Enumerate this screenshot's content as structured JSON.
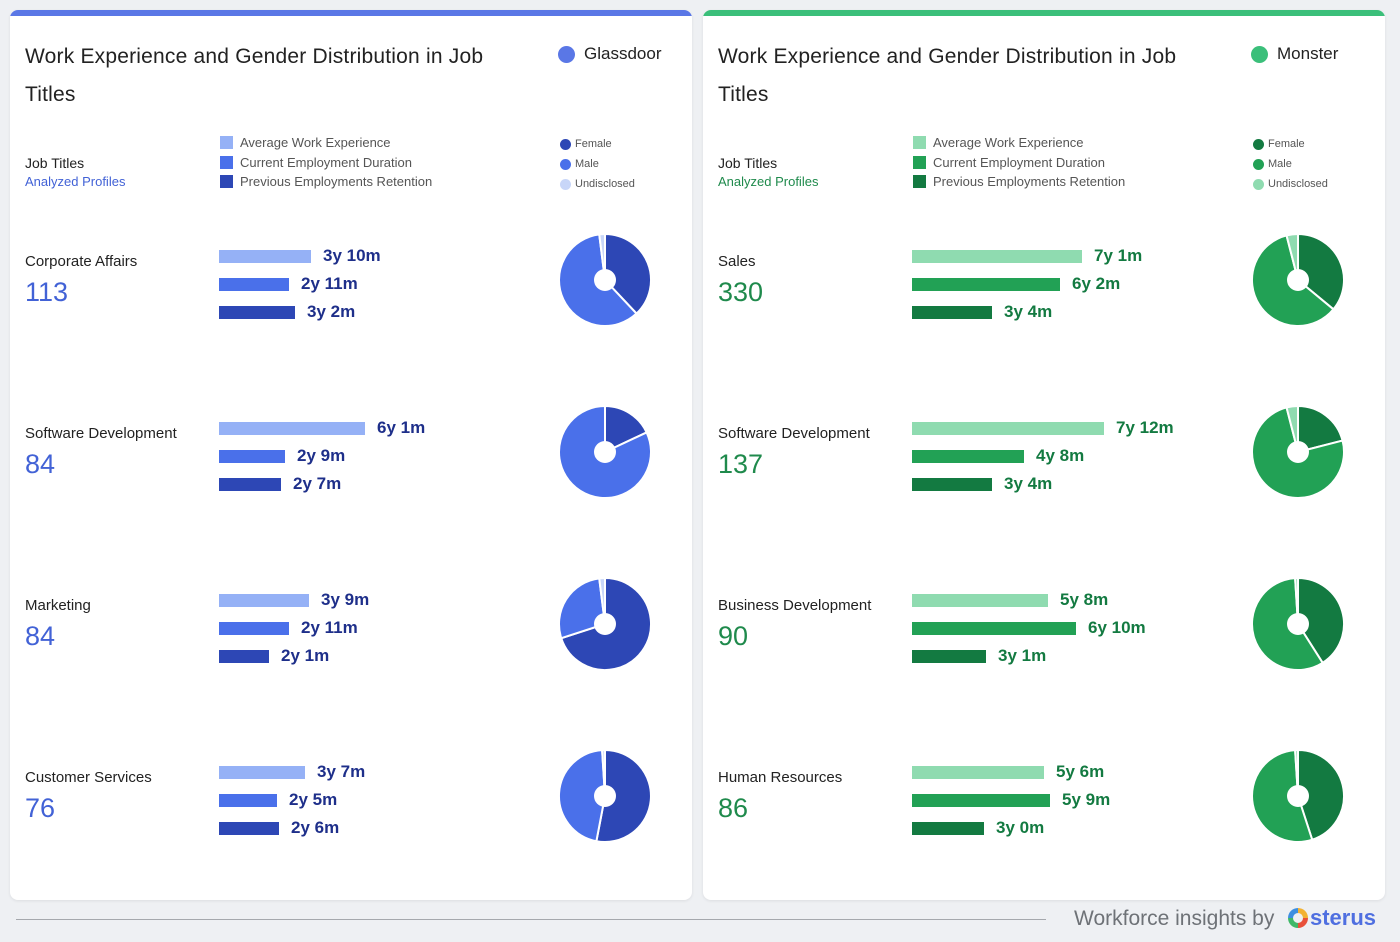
{
  "panels": [
    {
      "title": "Work Experience and Gender Distribution in Job Titles",
      "source": "Glassdoor",
      "accent": "#5a77e6",
      "count_color": "#4262d6",
      "bar_colors": [
        "#95b1f6",
        "#4a70ea",
        "#2d47b5"
      ],
      "label_color": "#1e2f8a",
      "gender_colors": [
        "#2d47b5",
        "#4a70ea",
        "#c8d6f8"
      ],
      "header": {
        "job_titles": "Job Titles",
        "analyzed_profiles": "Analyzed Profiles",
        "legend_bars": [
          "Average Work Experience",
          "Current Employment Duration",
          "Previous Employments Retention"
        ],
        "legend_gender": [
          "Female",
          "Male",
          "Undisclosed"
        ]
      },
      "chart_data": {
        "type": "bar",
        "series_names": [
          "Average Work Experience",
          "Current Employment Duration",
          "Previous Employments Retention"
        ],
        "unit": "months",
        "jobs": [
          {
            "title": "Corporate Affairs",
            "profiles": "113",
            "values": [
              46,
              35,
              38
            ],
            "labels": [
              "3y 10m",
              "2y 11m",
              "3y 2m"
            ],
            "gender": {
              "female": 0.38,
              "male": 0.6,
              "undisclosed": 0.02
            }
          },
          {
            "title": "Software Development",
            "profiles": "84",
            "values": [
              73,
              33,
              31
            ],
            "labels": [
              "6y 1m",
              "2y 9m",
              "2y 7m"
            ],
            "gender": {
              "female": 0.18,
              "male": 0.82,
              "undisclosed": 0.0
            }
          },
          {
            "title": "Marketing",
            "profiles": "84",
            "values": [
              45,
              35,
              25
            ],
            "labels": [
              "3y 9m",
              "2y 11m",
              "2y 1m"
            ],
            "gender": {
              "female": 0.7,
              "male": 0.28,
              "undisclosed": 0.02
            }
          },
          {
            "title": "Customer Services",
            "profiles": "76",
            "values": [
              43,
              29,
              30
            ],
            "labels": [
              "3y 7m",
              "2y 5m",
              "2y 6m"
            ],
            "gender": {
              "female": 0.53,
              "male": 0.46,
              "undisclosed": 0.01
            }
          }
        ]
      }
    },
    {
      "title": "Work Experience and Gender Distribution in Job Titles",
      "source": "Monster",
      "accent": "#3bbf7a",
      "count_color": "#1f8a4c",
      "bar_colors": [
        "#8fdbb0",
        "#22a155",
        "#137a41"
      ],
      "label_color": "#137a41",
      "gender_colors": [
        "#137a41",
        "#22a155",
        "#8fdbb0"
      ],
      "header": {
        "job_titles": "Job Titles",
        "analyzed_profiles": "Analyzed Profiles",
        "legend_bars": [
          "Average Work Experience",
          "Current Employment Duration",
          "Previous Employments Retention"
        ],
        "legend_gender": [
          "Female",
          "Male",
          "Undisclosed"
        ]
      },
      "chart_data": {
        "type": "bar",
        "series_names": [
          "Average Work Experience",
          "Current Employment Duration",
          "Previous Employments Retention"
        ],
        "unit": "months",
        "jobs": [
          {
            "title": "Sales",
            "profiles": "330",
            "values": [
              85,
              74,
              40
            ],
            "labels": [
              "7y 1m",
              "6y 2m",
              "3y 4m"
            ],
            "gender": {
              "female": 0.36,
              "male": 0.6,
              "undisclosed": 0.04
            }
          },
          {
            "title": "Software Development",
            "profiles": "137",
            "values": [
              96,
              56,
              40
            ],
            "labels": [
              "7y 12m",
              "4y 8m",
              "3y 4m"
            ],
            "gender": {
              "female": 0.21,
              "male": 0.75,
              "undisclosed": 0.04
            }
          },
          {
            "title": "Business Development",
            "profiles": "90",
            "values": [
              68,
              82,
              37
            ],
            "labels": [
              "5y 8m",
              "6y 10m",
              "3y 1m"
            ],
            "gender": {
              "female": 0.41,
              "male": 0.58,
              "undisclosed": 0.01
            }
          },
          {
            "title": "Human Resources",
            "profiles": "86",
            "values": [
              66,
              69,
              36
            ],
            "labels": [
              "5y 6m",
              "5y 9m",
              "3y 0m"
            ],
            "gender": {
              "female": 0.45,
              "male": 0.54,
              "undisclosed": 0.01
            }
          }
        ]
      }
    }
  ],
  "footer": {
    "text": "Workforce insights by",
    "brand": "sterus",
    "logo_icon": "osterus-logo-icon"
  }
}
